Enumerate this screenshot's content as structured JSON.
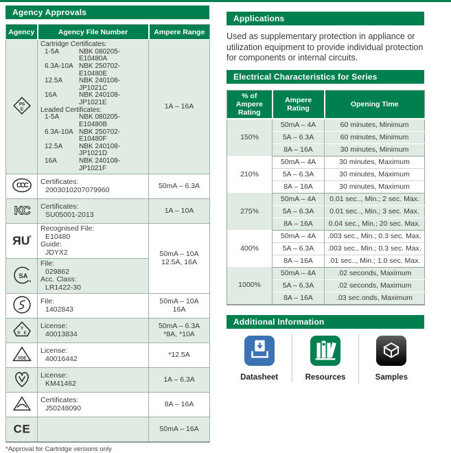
{
  "colors": {
    "green": "#00804f",
    "stripe": "#e0ebe4",
    "border": "#9fb0a8",
    "datasheet_blue": "#3b72b4",
    "samples_black": "#1a1a1a"
  },
  "agency_approvals": {
    "title": "Agency Approvals",
    "columns": [
      "Agency",
      "Agency File Number",
      "Ampere Range"
    ],
    "rows": [
      {
        "icon": "pse-mark-icon",
        "file": {
          "type": "pairs",
          "items": [
            {
              "a": "Cartridge Certificates:"
            },
            {
              "a": "1-5A",
              "b": "NBK 080205-E10480A"
            },
            {
              "a": "6.3A-10A",
              "b": "NBK 250702-E10480E"
            },
            {
              "a": "12.5A",
              "b": "NBK 240108-JP1021C"
            },
            {
              "a": "16A",
              "b": "NBK 240108-JP1021E"
            },
            {
              "a": "Leaded Certificates:"
            },
            {
              "a": "1-5A",
              "b": "NBK 080205-E10480B"
            },
            {
              "a": "6.3A-10A",
              "b": "NBK 250702-E10480F"
            },
            {
              "a": "12.5A",
              "b": "NBK 240108-JP1021D"
            },
            {
              "a": "16A",
              "b": "NBK 240108-JP1021F"
            }
          ]
        },
        "ampere": {
          "lines": [
            "1A – 16A"
          ]
        }
      },
      {
        "icon": "ccc-mark-icon",
        "file": {
          "type": "lines",
          "items": [
            {
              "t": "Certificates:"
            },
            {
              "t": "2003010207079960",
              "ind": true
            }
          ]
        },
        "ampere": {
          "lines": [
            "50mA – 6.3A"
          ]
        }
      },
      {
        "icon": "kc-mark-icon",
        "file": {
          "type": "lines",
          "items": [
            {
              "t": "Certificates:"
            },
            {
              "t": "SU05001-2013",
              "ind": true
            }
          ]
        },
        "ampere": {
          "lines": [
            "1A – 10A"
          ]
        }
      },
      {
        "icon": "ul-recognized-mark-icon",
        "file": {
          "type": "lines",
          "items": [
            {
              "t": "Recognised File:"
            },
            {
              "t": "E10480",
              "ind": true
            },
            {
              "t": "Guide:"
            },
            {
              "t": "JDYX2",
              "ind": true
            }
          ]
        },
        "ampere": {
          "rowspan": 2,
          "lines": [
            "50mA – 10A",
            "12.5A, 16A"
          ]
        }
      },
      {
        "icon": "csa-mark-icon",
        "file": {
          "type": "lines",
          "items": [
            {
              "t": "File:"
            },
            {
              "t": "029862",
              "ind": true
            },
            {
              "t": "Acc. Class:"
            },
            {
              "t": "LR1422-30",
              "ind": true
            }
          ]
        },
        "ampere": null
      },
      {
        "icon": "semko-s-mark-icon",
        "file": {
          "type": "lines",
          "items": [
            {
              "t": "File:"
            },
            {
              "t": "1402843",
              "ind": true
            }
          ]
        },
        "ampere": {
          "lines": [
            "50mA – 10A",
            "16A"
          ]
        }
      },
      {
        "icon": "dve-mark-icon",
        "file": {
          "type": "lines",
          "items": [
            {
              "t": "License:"
            },
            {
              "t": "40013834",
              "ind": true
            }
          ]
        },
        "ampere": {
          "lines": [
            "50mA – 6.3A",
            "*8A, *10A"
          ]
        }
      },
      {
        "icon": "vde-triangle-mark-icon",
        "file": {
          "type": "lines",
          "items": [
            {
              "t": "License:"
            },
            {
              "t": "40016442",
              "ind": true
            }
          ]
        },
        "ampere": {
          "lines": [
            "*12.5A"
          ]
        }
      },
      {
        "icon": "kema-keur-mark-icon",
        "file": {
          "type": "lines",
          "items": [
            {
              "t": "License:"
            },
            {
              "t": "KM41462",
              "ind": true
            }
          ]
        },
        "ampere": {
          "lines": [
            "1A – 6.3A"
          ]
        }
      },
      {
        "icon": "demko-triangle-mark-icon",
        "file": {
          "type": "lines",
          "items": [
            {
              "t": "Certificates:"
            },
            {
              "t": "J50248090",
              "ind": true
            }
          ]
        },
        "ampere": {
          "lines": [
            "8A – 16A"
          ]
        }
      },
      {
        "icon": "ce-mark-icon",
        "file": {
          "type": "lines",
          "items": []
        },
        "ampere": {
          "lines": [
            "50mA – 16A"
          ]
        }
      }
    ],
    "footnote": "*Approval for Cartridge versions only"
  },
  "applications": {
    "title": "Applications",
    "body": "Used as supplementary protection in appliance or utilization equipment to provide individual protection for components or internal circuits."
  },
  "electrical": {
    "title": "Electrical Characteristics for Series",
    "columns": [
      "% of Ampere Rating",
      "Ampere Rating",
      "Opening Time"
    ],
    "groups": [
      {
        "pct": "150%",
        "rows": [
          [
            "50mA – 4A",
            "60 minutes, Minimum"
          ],
          [
            "5A – 6.3A",
            "60 minutes, Minimum"
          ],
          [
            "8A – 16A",
            "30 minutes, Minimum"
          ]
        ]
      },
      {
        "pct": "210%",
        "rows": [
          [
            "50mA – 4A",
            "30 minutes, Maximum"
          ],
          [
            "5A – 6.3A",
            "30 minutes, Maximum"
          ],
          [
            "8A – 16A",
            "30 minutes, Maximum"
          ]
        ]
      },
      {
        "pct": "275%",
        "rows": [
          [
            "50mA – 4A",
            "0.01 sec.., Min.; 2 sec. Max."
          ],
          [
            "5A – 6.3A",
            "0.01 sec.., Min.; 3 sec. Max."
          ],
          [
            "8A – 16A",
            "0.04 sec., Min.; 20 sec. Max."
          ]
        ]
      },
      {
        "pct": "400%",
        "rows": [
          [
            "50mA – 4A",
            ".003 sec., Min.; 0.3 sec. Max."
          ],
          [
            "5A – 6.3A",
            ".003 sec., Min.; 0.3 sec. Max."
          ],
          [
            "8A – 16A",
            ".01 sec.., Min.; 1.0 sec. Max."
          ]
        ]
      },
      {
        "pct": "1000%",
        "rows": [
          [
            "50mA – 4A",
            ".02 seconds, Maximum"
          ],
          [
            "5A – 6.3A",
            ".02 seconds, Maximum"
          ],
          [
            "8A – 16A",
            ".03 sec.onds, Maximum"
          ]
        ]
      }
    ]
  },
  "additional": {
    "title": "Additional Information",
    "items": [
      {
        "label": "Datasheet",
        "icon": "datasheet-icon"
      },
      {
        "label": "Resources",
        "icon": "resources-icon"
      },
      {
        "label": "Samples",
        "icon": "samples-icon"
      }
    ]
  }
}
